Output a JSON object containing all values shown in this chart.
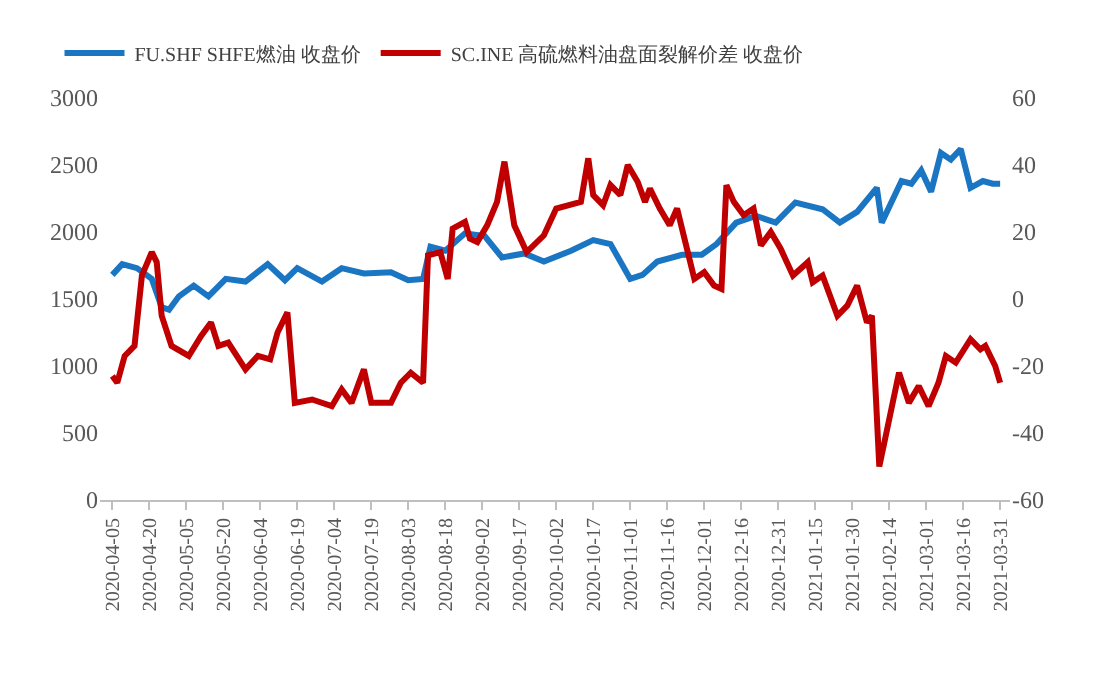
{
  "chart_data": {
    "type": "line",
    "legend": "top",
    "grid": false,
    "xlim": [
      "2020-03-31",
      "2021-04-04"
    ],
    "xticks": [
      "2020-04-05",
      "2020-04-20",
      "2020-05-05",
      "2020-05-20",
      "2020-06-04",
      "2020-06-19",
      "2020-07-04",
      "2020-07-19",
      "2020-08-03",
      "2020-08-18",
      "2020-09-02",
      "2020-09-17",
      "2020-10-02",
      "2020-10-17",
      "2020-11-01",
      "2020-11-16",
      "2020-12-01",
      "2020-12-16",
      "2020-12-31",
      "2021-01-15",
      "2021-01-30",
      "2021-02-14",
      "2021-03-01",
      "2021-03-16",
      "2021-03-31"
    ],
    "ylim": [
      0,
      3000
    ],
    "yticks": [
      0,
      500,
      1000,
      1500,
      2000,
      2500,
      3000
    ],
    "y2lim": [
      -60,
      60
    ],
    "y2ticks": [
      -60,
      -40,
      -20,
      0,
      20,
      40,
      60
    ],
    "series": [
      {
        "name": "FU.SHF SHFE燃油 收盘价",
        "color": "#1a75c2",
        "x": [
          "2020-04-05",
          "2020-04-09",
          "2020-04-15",
          "2020-04-21",
          "2020-04-25",
          "2020-04-28",
          "2020-05-02",
          "2020-05-08",
          "2020-05-14",
          "2020-05-21",
          "2020-05-29",
          "2020-06-07",
          "2020-06-14",
          "2020-06-19",
          "2020-06-29",
          "2020-07-07",
          "2020-07-16",
          "2020-07-27",
          "2020-08-03",
          "2020-08-09",
          "2020-08-12",
          "2020-08-18",
          "2020-08-26",
          "2020-09-03",
          "2020-09-10",
          "2020-09-19",
          "2020-09-27",
          "2020-10-08",
          "2020-10-17",
          "2020-10-24",
          "2020-11-01",
          "2020-11-06",
          "2020-11-12",
          "2020-11-22",
          "2020-11-30",
          "2020-12-06",
          "2020-12-14",
          "2020-12-22",
          "2020-12-30",
          "2021-01-07",
          "2021-01-18",
          "2021-01-25",
          "2021-02-01",
          "2021-02-09",
          "2021-02-11",
          "2021-02-19",
          "2021-02-23",
          "2021-02-27",
          "2021-03-03",
          "2021-03-07",
          "2021-03-11",
          "2021-03-15",
          "2021-03-19",
          "2021-03-24",
          "2021-03-28",
          "2021-03-31"
        ],
        "values": [
          1680,
          1760,
          1730,
          1650,
          1440,
          1420,
          1520,
          1600,
          1520,
          1650,
          1630,
          1760,
          1640,
          1730,
          1630,
          1730,
          1690,
          1700,
          1640,
          1650,
          1890,
          1860,
          1990,
          1970,
          1810,
          1840,
          1780,
          1860,
          1940,
          1910,
          1650,
          1680,
          1780,
          1830,
          1830,
          1910,
          2070,
          2120,
          2070,
          2220,
          2170,
          2070,
          2150,
          2330,
          2070,
          2380,
          2360,
          2460,
          2300,
          2590,
          2540,
          2620,
          2330,
          2380,
          2360,
          2360
        ]
      },
      {
        "name": "SC.INE 高硫燃料油盘面裂解价差 收盘价",
        "color": "#c00000",
        "axis": "y2",
        "x": [
          "2020-04-05",
          "2020-04-07",
          "2020-04-10",
          "2020-04-14",
          "2020-04-17",
          "2020-04-21",
          "2020-04-23",
          "2020-04-25",
          "2020-04-29",
          "2020-05-06",
          "2020-05-11",
          "2020-05-15",
          "2020-05-18",
          "2020-05-22",
          "2020-05-29",
          "2020-06-03",
          "2020-06-08",
          "2020-06-11",
          "2020-06-15",
          "2020-06-18",
          "2020-06-25",
          "2020-07-03",
          "2020-07-07",
          "2020-07-11",
          "2020-07-16",
          "2020-07-19",
          "2020-07-27",
          "2020-07-31",
          "2020-08-04",
          "2020-08-09",
          "2020-08-11",
          "2020-08-16",
          "2020-08-19",
          "2020-08-21",
          "2020-08-26",
          "2020-08-28",
          "2020-08-31",
          "2020-09-04",
          "2020-09-08",
          "2020-09-11",
          "2020-09-15",
          "2020-09-20",
          "2020-09-27",
          "2020-10-02",
          "2020-10-12",
          "2020-10-15",
          "2020-10-17",
          "2020-10-21",
          "2020-10-24",
          "2020-10-28",
          "2020-10-31",
          "2020-11-04",
          "2020-11-07",
          "2020-11-09",
          "2020-11-13",
          "2020-11-17",
          "2020-11-20",
          "2020-11-24",
          "2020-11-27",
          "2020-12-01",
          "2020-12-05",
          "2020-12-08",
          "2020-12-10",
          "2020-12-13",
          "2020-12-17",
          "2020-12-21",
          "2020-12-24",
          "2020-12-28",
          "2021-01-01",
          "2021-01-06",
          "2021-01-12",
          "2021-01-14",
          "2021-01-18",
          "2021-01-24",
          "2021-01-28",
          "2021-02-01",
          "2021-02-05",
          "2021-02-07",
          "2021-02-10",
          "2021-02-18",
          "2021-02-22",
          "2021-02-26",
          "2021-03-02",
          "2021-03-06",
          "2021-03-09",
          "2021-03-13",
          "2021-03-19",
          "2021-03-23",
          "2021-03-25",
          "2021-03-29",
          "2021-03-31"
        ],
        "values": [
          -23,
          -25,
          -17,
          -14,
          7,
          14,
          11,
          -5,
          -14,
          -17,
          -11,
          -7,
          -14,
          -13,
          -21,
          -17,
          -18,
          -10,
          -4,
          -31,
          -30,
          -32,
          -27,
          -31,
          -21,
          -31,
          -31,
          -25,
          -22,
          -25,
          13,
          14,
          6,
          21,
          23,
          18,
          17,
          22,
          29,
          41,
          22,
          14,
          19,
          27,
          29,
          42,
          31,
          28,
          34,
          31,
          40,
          35,
          29,
          33,
          27,
          22,
          27,
          15,
          6,
          8,
          4,
          3,
          34,
          29,
          25,
          27,
          16,
          20,
          15,
          7,
          11,
          5,
          7,
          -5,
          -2,
          4,
          -7,
          -5,
          -50,
          -22,
          -31,
          -26,
          -32,
          -25,
          -17,
          -19,
          -12,
          -15,
          -14,
          -20,
          -25
        ]
      }
    ]
  }
}
